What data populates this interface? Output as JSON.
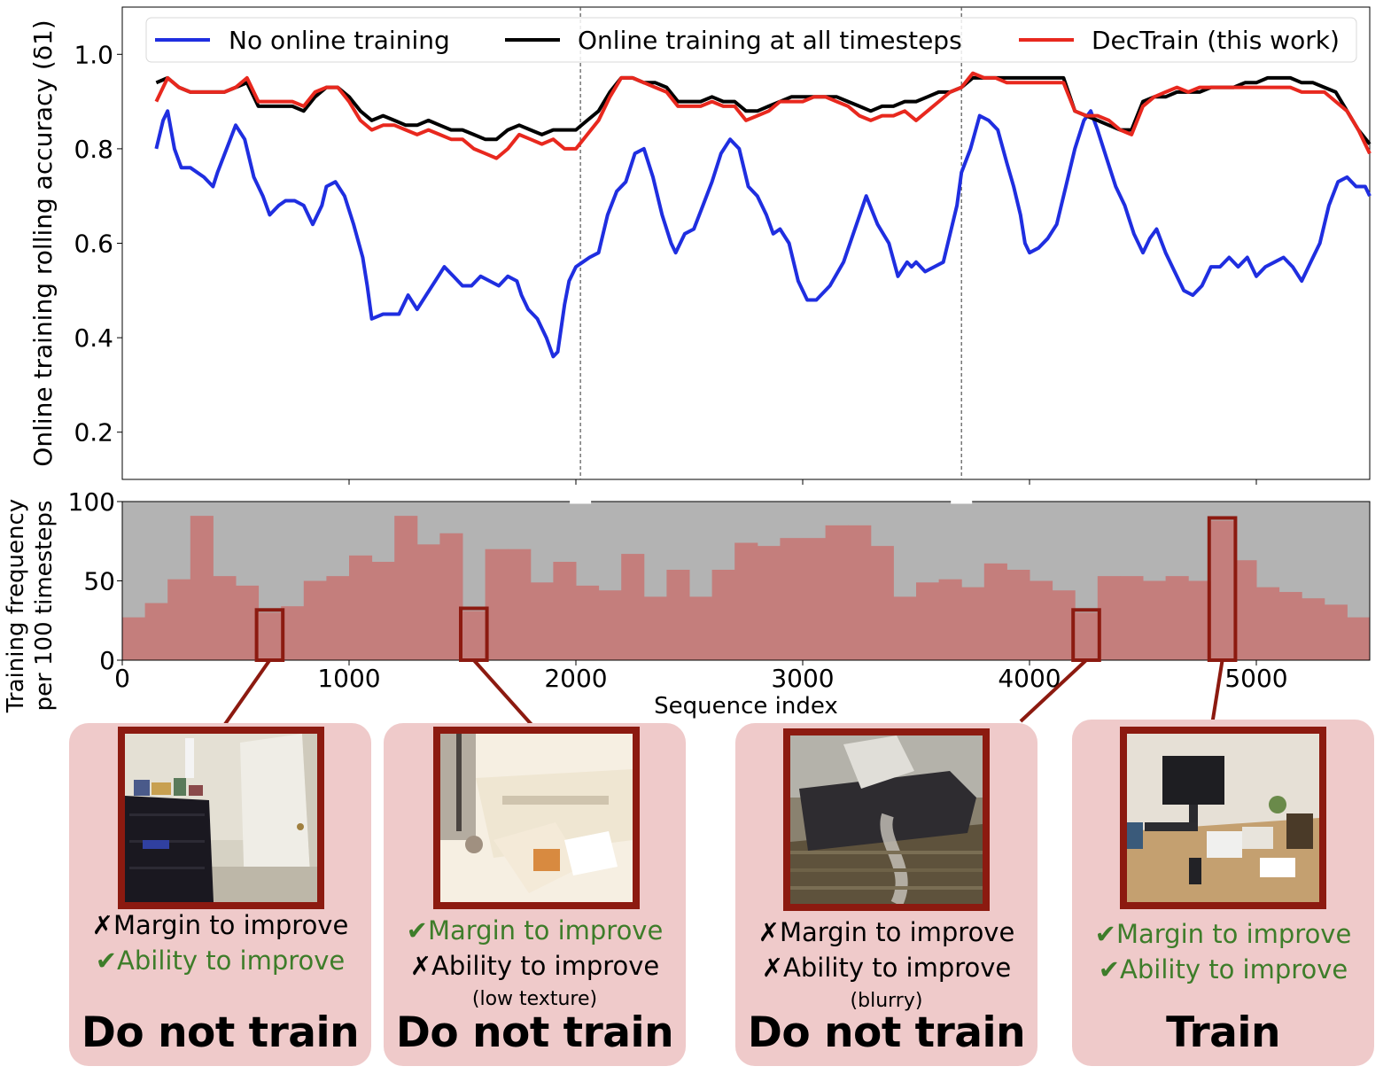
{
  "chart_data": [
    {
      "type": "line",
      "ylabel": "Online training rolling accuracy (δ1)",
      "yticks": [
        "0.2",
        "0.4",
        "0.6",
        "0.8",
        "1.0"
      ],
      "ylim": [
        0.1,
        1.1
      ],
      "xlim": [
        0,
        5500
      ],
      "grid": false,
      "legend_position": "top",
      "markers": [
        2020,
        3700
      ],
      "series": [
        {
          "name": "No online training",
          "color": "#1f2ee0",
          "x": [
            150,
            180,
            200,
            230,
            260,
            300,
            360,
            400,
            420,
            460,
            500,
            540,
            580,
            620,
            650,
            690,
            720,
            760,
            800,
            840,
            880,
            900,
            940,
            980,
            1020,
            1060,
            1080,
            1100,
            1150,
            1180,
            1220,
            1260,
            1300,
            1340,
            1380,
            1420,
            1460,
            1500,
            1540,
            1580,
            1620,
            1660,
            1700,
            1740,
            1760,
            1790,
            1830,
            1870,
            1900,
            1920,
            1950,
            1970,
            2000,
            2030,
            2060,
            2100,
            2140,
            2180,
            2220,
            2260,
            2300,
            2340,
            2380,
            2420,
            2440,
            2480,
            2520,
            2560,
            2600,
            2640,
            2680,
            2720,
            2760,
            2800,
            2840,
            2870,
            2900,
            2940,
            2980,
            3020,
            3060,
            3120,
            3180,
            3230,
            3280,
            3330,
            3380,
            3420,
            3460,
            3480,
            3500,
            3540,
            3580,
            3620,
            3650,
            3680,
            3700,
            3740,
            3780,
            3820,
            3860,
            3900,
            3930,
            3960,
            3980,
            4000,
            4040,
            4080,
            4120,
            4160,
            4200,
            4240,
            4270,
            4300,
            4340,
            4380,
            4420,
            4460,
            4500,
            4530,
            4560,
            4600,
            4640,
            4680,
            4720,
            4760,
            4800,
            4840,
            4880,
            4920,
            4960,
            5000,
            5040,
            5080,
            5120,
            5160,
            5200,
            5240,
            5280,
            5320,
            5360,
            5400,
            5440,
            5480,
            5500
          ],
          "y": [
            0.8,
            0.86,
            0.88,
            0.8,
            0.76,
            0.76,
            0.74,
            0.72,
            0.75,
            0.8,
            0.85,
            0.82,
            0.74,
            0.7,
            0.66,
            0.68,
            0.69,
            0.69,
            0.68,
            0.64,
            0.68,
            0.72,
            0.73,
            0.7,
            0.64,
            0.57,
            0.51,
            0.44,
            0.45,
            0.45,
            0.45,
            0.49,
            0.46,
            0.49,
            0.52,
            0.55,
            0.53,
            0.51,
            0.51,
            0.53,
            0.52,
            0.51,
            0.53,
            0.52,
            0.49,
            0.46,
            0.44,
            0.4,
            0.36,
            0.37,
            0.47,
            0.52,
            0.55,
            0.56,
            0.57,
            0.58,
            0.66,
            0.71,
            0.73,
            0.79,
            0.8,
            0.74,
            0.66,
            0.6,
            0.58,
            0.62,
            0.63,
            0.68,
            0.73,
            0.79,
            0.82,
            0.8,
            0.72,
            0.7,
            0.66,
            0.62,
            0.63,
            0.6,
            0.52,
            0.48,
            0.48,
            0.51,
            0.56,
            0.63,
            0.7,
            0.64,
            0.6,
            0.53,
            0.56,
            0.55,
            0.56,
            0.54,
            0.55,
            0.56,
            0.62,
            0.68,
            0.75,
            0.8,
            0.87,
            0.86,
            0.84,
            0.77,
            0.72,
            0.66,
            0.6,
            0.58,
            0.59,
            0.61,
            0.64,
            0.72,
            0.8,
            0.86,
            0.88,
            0.84,
            0.78,
            0.72,
            0.68,
            0.62,
            0.58,
            0.61,
            0.63,
            0.58,
            0.54,
            0.5,
            0.49,
            0.51,
            0.55,
            0.55,
            0.57,
            0.55,
            0.57,
            0.53,
            0.55,
            0.56,
            0.57,
            0.55,
            0.52,
            0.56,
            0.6,
            0.68,
            0.73,
            0.74,
            0.72,
            0.72,
            0.7
          ]
        },
        {
          "name": "Online training at all timesteps",
          "color": "#000000",
          "x": [
            150,
            200,
            250,
            300,
            350,
            400,
            450,
            500,
            550,
            600,
            650,
            700,
            750,
            800,
            850,
            900,
            950,
            1000,
            1050,
            1100,
            1150,
            1200,
            1250,
            1300,
            1350,
            1400,
            1450,
            1500,
            1550,
            1600,
            1650,
            1700,
            1750,
            1800,
            1850,
            1900,
            1950,
            2000,
            2050,
            2100,
            2150,
            2200,
            2250,
            2300,
            2350,
            2400,
            2450,
            2500,
            2550,
            2600,
            2650,
            2700,
            2750,
            2800,
            2850,
            2900,
            2950,
            3000,
            3050,
            3100,
            3150,
            3200,
            3250,
            3300,
            3350,
            3400,
            3450,
            3500,
            3550,
            3600,
            3650,
            3700,
            3750,
            3800,
            3850,
            3900,
            3950,
            4000,
            4050,
            4100,
            4150,
            4200,
            4250,
            4300,
            4350,
            4400,
            4450,
            4500,
            4550,
            4600,
            4650,
            4700,
            4750,
            4800,
            4850,
            4900,
            4950,
            5000,
            5050,
            5100,
            5150,
            5200,
            5250,
            5300,
            5350,
            5400,
            5450,
            5500
          ],
          "y": [
            0.94,
            0.95,
            0.93,
            0.92,
            0.92,
            0.92,
            0.92,
            0.93,
            0.94,
            0.89,
            0.89,
            0.89,
            0.89,
            0.88,
            0.91,
            0.93,
            0.93,
            0.91,
            0.88,
            0.86,
            0.87,
            0.86,
            0.85,
            0.85,
            0.86,
            0.85,
            0.84,
            0.84,
            0.83,
            0.82,
            0.82,
            0.84,
            0.85,
            0.84,
            0.83,
            0.84,
            0.84,
            0.84,
            0.86,
            0.88,
            0.92,
            0.95,
            0.95,
            0.94,
            0.94,
            0.93,
            0.9,
            0.9,
            0.9,
            0.91,
            0.9,
            0.9,
            0.88,
            0.88,
            0.89,
            0.9,
            0.91,
            0.91,
            0.91,
            0.91,
            0.91,
            0.9,
            0.89,
            0.88,
            0.89,
            0.89,
            0.9,
            0.9,
            0.91,
            0.92,
            0.92,
            0.93,
            0.95,
            0.95,
            0.95,
            0.95,
            0.95,
            0.95,
            0.95,
            0.95,
            0.95,
            0.88,
            0.87,
            0.86,
            0.85,
            0.84,
            0.84,
            0.9,
            0.91,
            0.91,
            0.92,
            0.92,
            0.92,
            0.93,
            0.93,
            0.93,
            0.94,
            0.94,
            0.95,
            0.95,
            0.95,
            0.94,
            0.94,
            0.93,
            0.92,
            0.88,
            0.84,
            0.81
          ]
        },
        {
          "name": "DecTrain (this work)",
          "color": "#e8281e",
          "x": [
            150,
            200,
            250,
            300,
            350,
            400,
            450,
            500,
            550,
            600,
            650,
            700,
            750,
            800,
            850,
            900,
            950,
            1000,
            1050,
            1100,
            1150,
            1200,
            1250,
            1300,
            1350,
            1400,
            1450,
            1500,
            1550,
            1600,
            1650,
            1700,
            1750,
            1800,
            1850,
            1900,
            1950,
            2000,
            2050,
            2100,
            2150,
            2200,
            2250,
            2300,
            2350,
            2400,
            2450,
            2500,
            2550,
            2600,
            2650,
            2700,
            2750,
            2800,
            2850,
            2900,
            2950,
            3000,
            3050,
            3100,
            3150,
            3200,
            3250,
            3300,
            3350,
            3400,
            3450,
            3500,
            3550,
            3600,
            3650,
            3700,
            3750,
            3800,
            3850,
            3900,
            3950,
            4000,
            4050,
            4100,
            4150,
            4200,
            4250,
            4300,
            4350,
            4400,
            4450,
            4500,
            4550,
            4600,
            4650,
            4700,
            4750,
            4800,
            4850,
            4900,
            4950,
            5000,
            5050,
            5100,
            5150,
            5200,
            5250,
            5300,
            5350,
            5400,
            5450,
            5500
          ],
          "y": [
            0.9,
            0.95,
            0.93,
            0.92,
            0.92,
            0.92,
            0.92,
            0.93,
            0.95,
            0.9,
            0.9,
            0.9,
            0.9,
            0.89,
            0.92,
            0.93,
            0.93,
            0.9,
            0.86,
            0.84,
            0.85,
            0.85,
            0.84,
            0.83,
            0.84,
            0.83,
            0.82,
            0.82,
            0.8,
            0.79,
            0.78,
            0.8,
            0.83,
            0.82,
            0.81,
            0.82,
            0.8,
            0.8,
            0.83,
            0.86,
            0.91,
            0.95,
            0.95,
            0.94,
            0.93,
            0.92,
            0.89,
            0.89,
            0.89,
            0.9,
            0.89,
            0.89,
            0.86,
            0.87,
            0.88,
            0.9,
            0.9,
            0.9,
            0.91,
            0.91,
            0.9,
            0.89,
            0.87,
            0.86,
            0.87,
            0.87,
            0.88,
            0.86,
            0.88,
            0.9,
            0.92,
            0.93,
            0.96,
            0.95,
            0.95,
            0.94,
            0.94,
            0.94,
            0.94,
            0.94,
            0.94,
            0.88,
            0.87,
            0.87,
            0.86,
            0.84,
            0.83,
            0.89,
            0.91,
            0.92,
            0.93,
            0.92,
            0.93,
            0.93,
            0.93,
            0.93,
            0.93,
            0.93,
            0.93,
            0.93,
            0.93,
            0.92,
            0.92,
            0.92,
            0.9,
            0.88,
            0.84,
            0.79
          ]
        }
      ]
    },
    {
      "type": "bar",
      "ylabel_line1": "Training frequency",
      "ylabel_line2": "per 100 timesteps",
      "xlabel": "Sequence index",
      "xticks": [
        "0",
        "1000",
        "2000",
        "3000",
        "4000",
        "5000"
      ],
      "yticks": [
        "0",
        "50",
        "100"
      ],
      "ylim": [
        0,
        100
      ],
      "xlim": [
        0,
        5500
      ],
      "bin_width": 100,
      "bar_color": "#c47e7c",
      "background_color": "#b3b3b3",
      "values": [
        27,
        36,
        51,
        91,
        53,
        47,
        30,
        34,
        50,
        53,
        66,
        62,
        91,
        73,
        80,
        31,
        70,
        70,
        49,
        62,
        47,
        44,
        67,
        40,
        57,
        40,
        57,
        74,
        72,
        77,
        77,
        85,
        85,
        72,
        40,
        49,
        51,
        46,
        61,
        57,
        50,
        44,
        30,
        53,
        53,
        50,
        53,
        50,
        88,
        63,
        46,
        43,
        39,
        35,
        27
      ],
      "highlights": [
        {
          "bin": 6
        },
        {
          "bin": 15
        },
        {
          "bin": 42
        },
        {
          "bin": 48
        }
      ]
    }
  ],
  "cards": [
    {
      "criteria": [
        {
          "mark": "✗",
          "text": "Margin to improve",
          "ok": false
        },
        {
          "mark": "✔",
          "text": "Ability to improve",
          "ok": true
        }
      ],
      "note": "",
      "decision": "Do not train"
    },
    {
      "criteria": [
        {
          "mark": "✔",
          "text": "Margin to improve",
          "ok": true
        },
        {
          "mark": "✗",
          "text": "Ability to improve",
          "ok": false
        }
      ],
      "note": "(low texture)",
      "decision": "Do not train"
    },
    {
      "criteria": [
        {
          "mark": "✗",
          "text": "Margin to improve",
          "ok": false
        },
        {
          "mark": "✗",
          "text": "Ability to improve",
          "ok": false
        }
      ],
      "note": "(blurry)",
      "decision": "Do not train"
    },
    {
      "criteria": [
        {
          "mark": "✔",
          "text": "Margin to improve",
          "ok": true
        },
        {
          "mark": "✔",
          "text": "Ability to improve",
          "ok": true
        }
      ],
      "note": "",
      "decision": "Train"
    }
  ]
}
